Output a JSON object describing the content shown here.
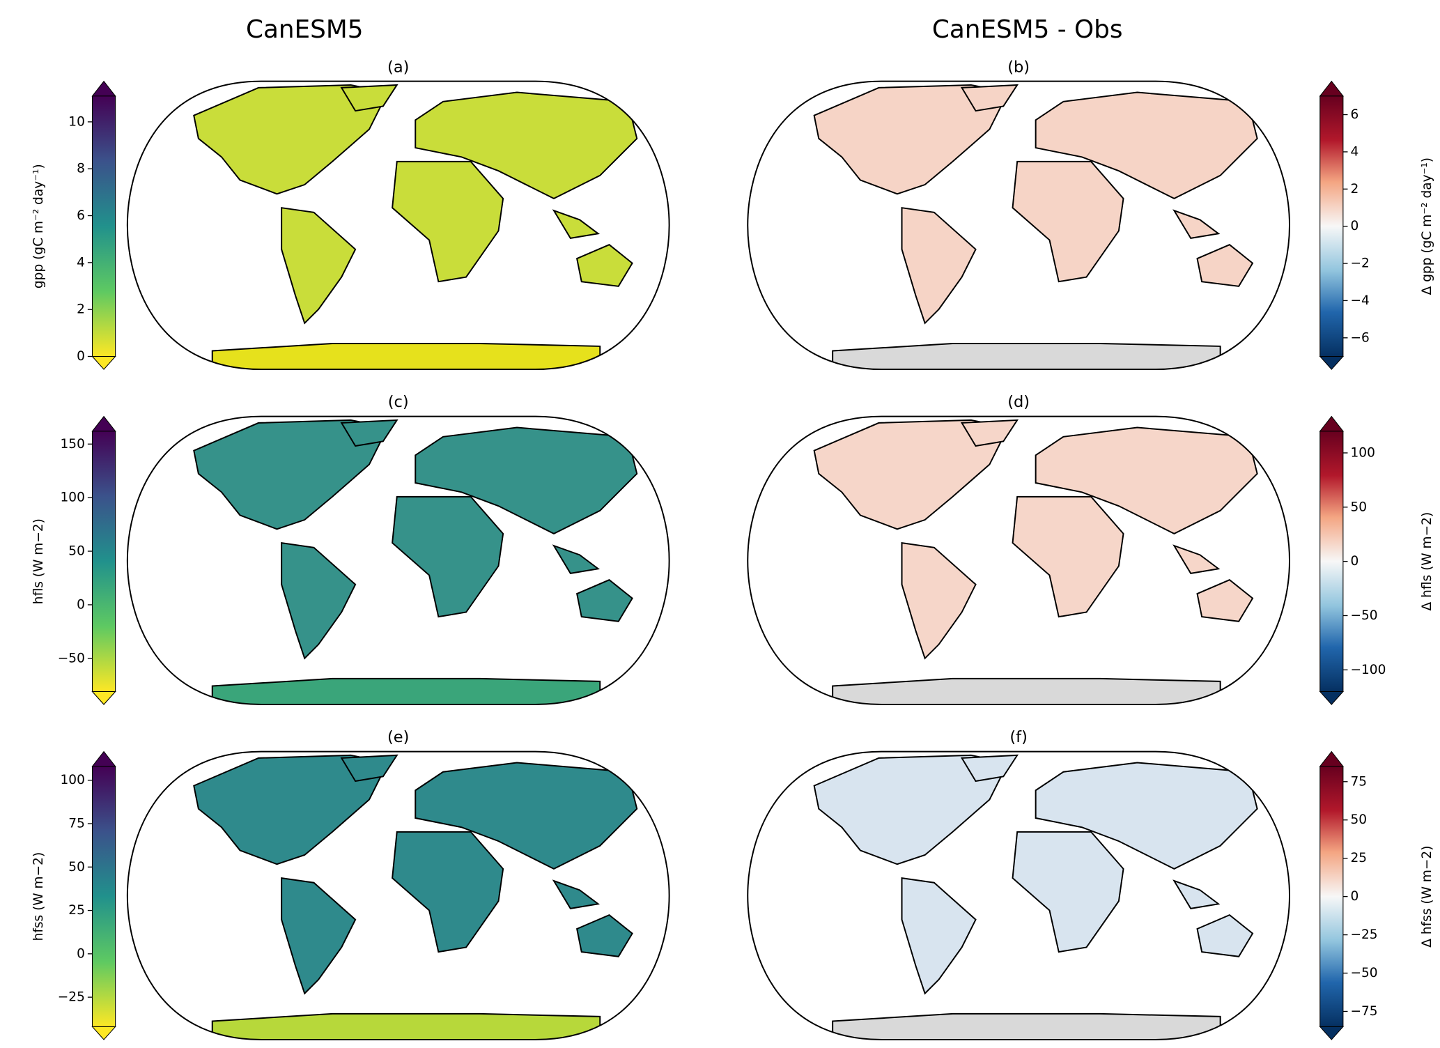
{
  "column_titles": [
    "CanESM5",
    "CanESM5 - Obs"
  ],
  "panels": [
    {
      "label": "(a)",
      "colorbar": {
        "label": "gpp (gC m⁻² day⁻¹)",
        "cmap": "viridis",
        "lim": [
          0,
          11.1
        ],
        "ticks": [
          0,
          2,
          4,
          6,
          8,
          10
        ]
      }
    },
    {
      "label": "(b)",
      "colorbar": {
        "label": "Δ gpp (gC m⁻² day⁻¹)",
        "cmap": "RdBu_r",
        "lim": [
          -7,
          7
        ],
        "ticks": [
          {
            "value": -6,
            "label": "−6"
          },
          {
            "value": -4,
            "label": "−4"
          },
          {
            "value": -2,
            "label": "−2"
          },
          0,
          2,
          4,
          6
        ]
      }
    },
    {
      "label": "(c)",
      "colorbar": {
        "label": "hfls (W m−2)",
        "cmap": "viridis",
        "lim": [
          -81,
          162
        ],
        "ticks": [
          {
            "value": -50,
            "label": "−50"
          },
          0,
          50,
          100,
          150
        ]
      }
    },
    {
      "label": "(d)",
      "colorbar": {
        "label": "Δ hfls (W m−2)",
        "cmap": "RdBu_r",
        "lim": [
          -120,
          120
        ],
        "ticks": [
          {
            "value": -100,
            "label": "−100"
          },
          {
            "value": -50,
            "label": "−50"
          },
          0,
          50,
          100
        ]
      }
    },
    {
      "label": "(e)",
      "colorbar": {
        "label": "hfss (W m−2)",
        "cmap": "viridis",
        "lim": [
          -42,
          108
        ],
        "ticks": [
          {
            "value": -25,
            "label": "−25"
          },
          0,
          25,
          50,
          75,
          100
        ]
      }
    },
    {
      "label": "(f)",
      "colorbar": {
        "label": "Δ hfss (W m−2)",
        "cmap": "RdBu_r",
        "lim": [
          -85,
          85
        ],
        "ticks": [
          {
            "value": -75,
            "label": "−75"
          },
          {
            "value": -50,
            "label": "−50"
          },
          {
            "value": -25,
            "label": "−25"
          },
          0,
          25,
          50,
          75
        ]
      }
    }
  ]
}
